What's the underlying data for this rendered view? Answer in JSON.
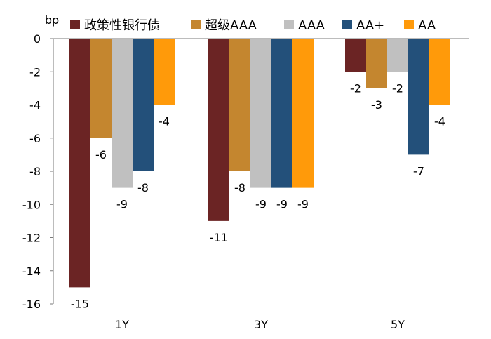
{
  "chart_data": {
    "type": "bar",
    "title": "",
    "xlabel": "",
    "ylabel": "bp",
    "ylim": [
      -16,
      0
    ],
    "yticks": [
      0,
      -2,
      -4,
      -6,
      -8,
      -10,
      -12,
      -14,
      -16
    ],
    "ytick_labels": [
      "0",
      "-2",
      "-4",
      "-6",
      "-8",
      "-10",
      "-12",
      "-14",
      "-16"
    ],
    "categories": [
      "1Y",
      "3Y",
      "5Y"
    ],
    "legend_position": "top",
    "series": [
      {
        "name": "政策性银行债",
        "color": "#6b2424",
        "values": [
          -15,
          -11,
          -2
        ],
        "labels": [
          "-15",
          "-11",
          "-2"
        ]
      },
      {
        "name": "超级AAA",
        "color": "#c4862f",
        "values": [
          -6,
          -8,
          -3
        ],
        "labels": [
          "-6",
          "-8",
          "-3"
        ]
      },
      {
        "name": "AAA",
        "color": "#c0c0c0",
        "values": [
          -9,
          -9,
          -2
        ],
        "labels": [
          "-9",
          "-9",
          "-2"
        ]
      },
      {
        "name": "AA+",
        "color": "#23507a",
        "values": [
          -8,
          -9,
          -7
        ],
        "labels": [
          "-8",
          "-9",
          "-7"
        ]
      },
      {
        "name": "AA",
        "color": "#ff9a0a",
        "values": [
          -4,
          -9,
          -4
        ],
        "labels": [
          "-4",
          "-9",
          "-4"
        ]
      }
    ]
  }
}
